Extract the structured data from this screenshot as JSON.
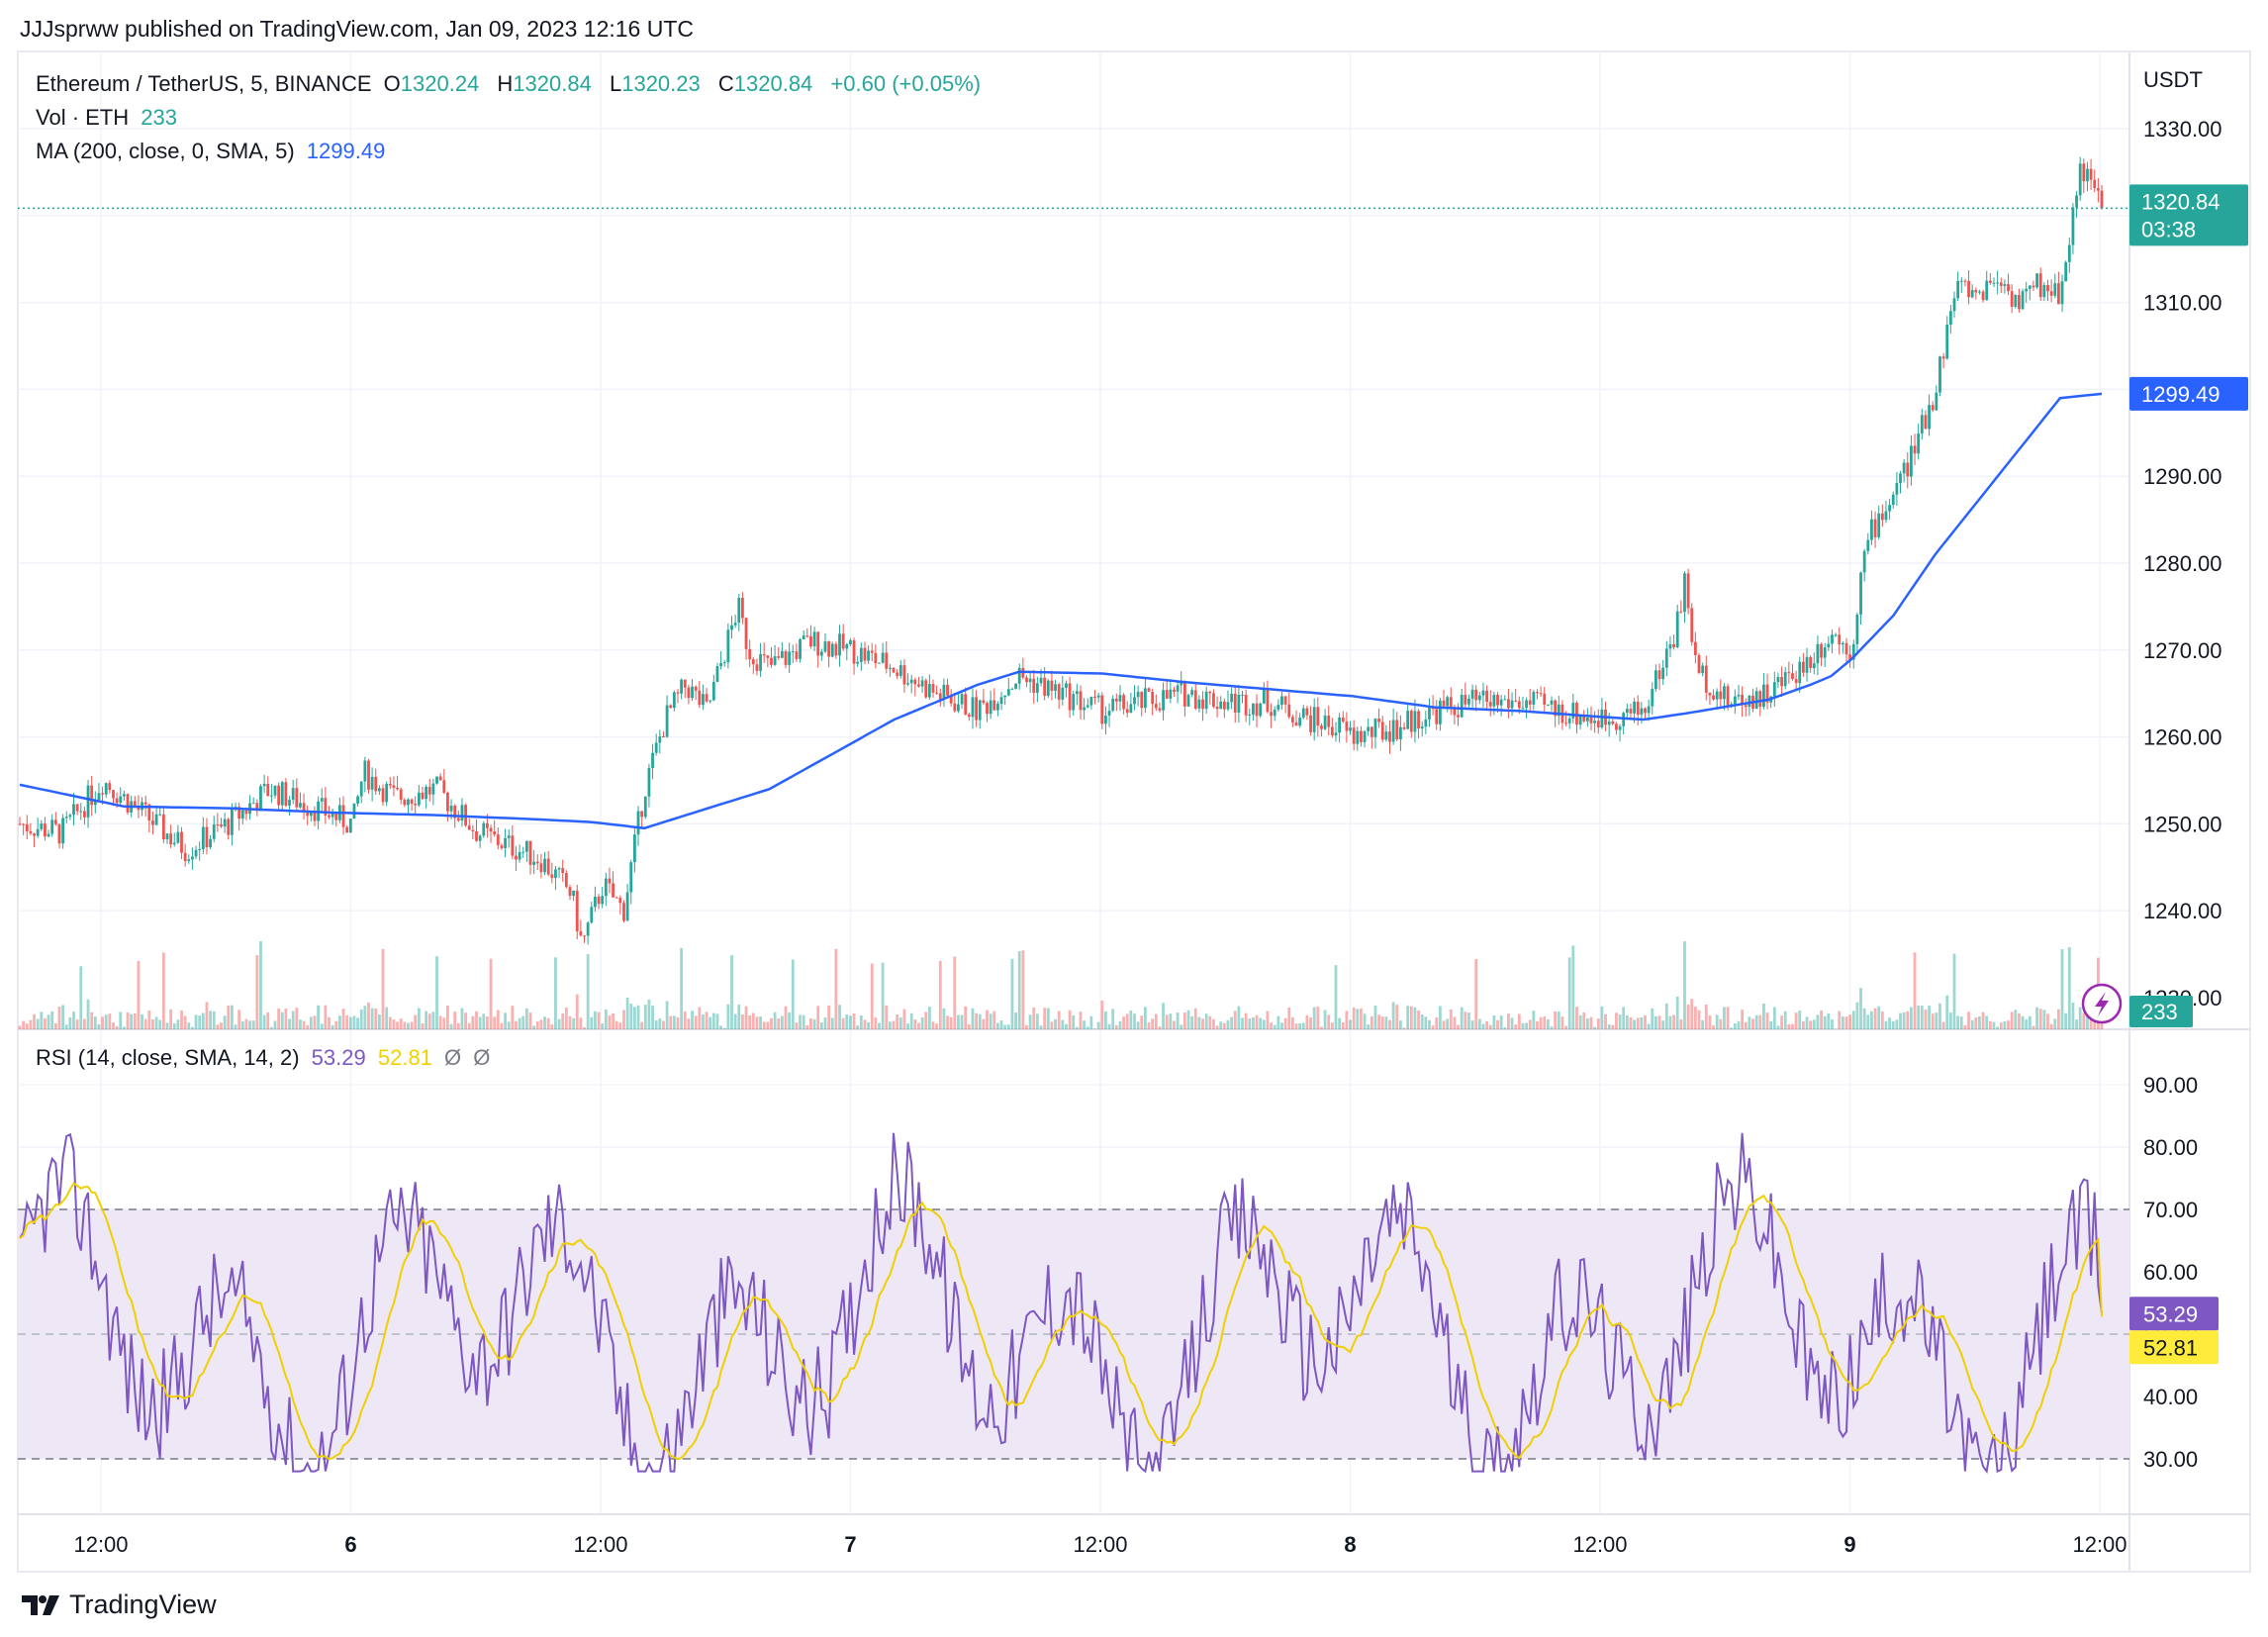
{
  "publisher": "JJJsprww published on TradingView.com, Jan 09, 2023 12:16 UTC",
  "legend": {
    "symbol": "Ethereum / TetherUS, 5, BINANCE",
    "o_label": "O",
    "o": "1320.24",
    "h_label": "H",
    "h": "1320.84",
    "l_label": "L",
    "l": "1320.23",
    "c_label": "C",
    "c": "1320.84",
    "change": "+0.60 (+0.05%)",
    "vol_label": "Vol · ETH",
    "vol": "233",
    "ma_label": "MA (200, close, 0, SMA, 5)",
    "ma": "1299.49",
    "rsi_label": "RSI (14, close, SMA, 14, 2)",
    "rsi": "53.29",
    "rsi_ma": "52.81",
    "extra1": "Ø",
    "extra2": "Ø"
  },
  "currency": "USDT",
  "price_tag": {
    "price": "1320.84",
    "countdown": "03:38"
  },
  "ma_tag": "1299.49",
  "vol_tag": "233",
  "rsi_tag": "53.29",
  "rsi_ma_tag": "52.81",
  "footer_brand": "TradingView",
  "colors": {
    "up": "#26a69a",
    "down": "#ef5350",
    "ma": "#2962ff",
    "rsi": "#7e57c2",
    "rsi_ma": "#f0d000",
    "band": "#ede7f6"
  },
  "chart_data": {
    "type": "candlestick",
    "price_axis": {
      "ticks": [
        "1330.00",
        "1320.00",
        "1310.00",
        "1300.00",
        "1290.00",
        "1280.00",
        "1270.00",
        "1260.00",
        "1250.00",
        "1240.00",
        "1230.00"
      ],
      "min": 1230,
      "max": 1330
    },
    "rsi_axis": {
      "ticks": [
        "90.00",
        "80.00",
        "70.00",
        "60.00",
        "50.00",
        "40.00",
        "30.00"
      ],
      "upper_band": 70,
      "lower_band": 30,
      "middle": 50
    },
    "x_ticks": [
      "12:00",
      "6",
      "12:00",
      "7",
      "12:00",
      "8",
      "12:00",
      "9",
      "12:00"
    ],
    "price_path": [
      [
        0,
        1250
      ],
      [
        0.02,
        1249
      ],
      [
        0.04,
        1255
      ],
      [
        0.06,
        1251
      ],
      [
        0.08,
        1247
      ],
      [
        0.1,
        1250
      ],
      [
        0.12,
        1254
      ],
      [
        0.14,
        1252
      ],
      [
        0.16,
        1250
      ],
      [
        0.165,
        1256
      ],
      [
        0.18,
        1253
      ],
      [
        0.2,
        1254
      ],
      [
        0.22,
        1249
      ],
      [
        0.24,
        1247
      ],
      [
        0.25,
        1246
      ],
      [
        0.265,
        1242
      ],
      [
        0.27,
        1236
      ],
      [
        0.28,
        1243
      ],
      [
        0.29,
        1240
      ],
      [
        0.3,
        1254
      ],
      [
        0.31,
        1262
      ],
      [
        0.32,
        1266
      ],
      [
        0.33,
        1263
      ],
      [
        0.345,
        1275
      ],
      [
        0.35,
        1270
      ],
      [
        0.36,
        1268
      ],
      [
        0.38,
        1271
      ],
      [
        0.4,
        1270
      ],
      [
        0.42,
        1268
      ],
      [
        0.44,
        1265
      ],
      [
        0.46,
        1263
      ],
      [
        0.48,
        1267
      ],
      [
        0.5,
        1265
      ],
      [
        0.52,
        1263
      ],
      [
        0.54,
        1264
      ],
      [
        0.56,
        1265
      ],
      [
        0.58,
        1264
      ],
      [
        0.6,
        1264
      ],
      [
        0.62,
        1262
      ],
      [
        0.635,
        1261
      ],
      [
        0.64,
        1260
      ],
      [
        0.66,
        1261
      ],
      [
        0.68,
        1263
      ],
      [
        0.7,
        1264
      ],
      [
        0.72,
        1264
      ],
      [
        0.74,
        1263
      ],
      [
        0.76,
        1262
      ],
      [
        0.78,
        1263
      ],
      [
        0.795,
        1272
      ],
      [
        0.8,
        1278
      ],
      [
        0.805,
        1268
      ],
      [
        0.82,
        1264
      ],
      [
        0.84,
        1265
      ],
      [
        0.86,
        1269
      ],
      [
        0.87,
        1272
      ],
      [
        0.88,
        1270
      ],
      [
        0.885,
        1280
      ],
      [
        0.89,
        1284
      ],
      [
        0.9,
        1288
      ],
      [
        0.91,
        1293
      ],
      [
        0.92,
        1300
      ],
      [
        0.93,
        1312
      ],
      [
        0.94,
        1311
      ],
      [
        0.95,
        1313
      ],
      [
        0.96,
        1310
      ],
      [
        0.97,
        1312
      ],
      [
        0.98,
        1311
      ],
      [
        0.99,
        1326
      ],
      [
        1.0,
        1320.84
      ]
    ],
    "ma_path": [
      [
        0,
        1254.5
      ],
      [
        0.05,
        1252
      ],
      [
        0.1,
        1251.8
      ],
      [
        0.15,
        1251.3
      ],
      [
        0.2,
        1251.0
      ],
      [
        0.25,
        1250.5
      ],
      [
        0.275,
        1250.2
      ],
      [
        0.3,
        1249.5
      ],
      [
        0.32,
        1251
      ],
      [
        0.36,
        1254
      ],
      [
        0.42,
        1262
      ],
      [
        0.46,
        1266
      ],
      [
        0.48,
        1267.5
      ],
      [
        0.52,
        1267.3
      ],
      [
        0.56,
        1266.3
      ],
      [
        0.6,
        1265.5
      ],
      [
        0.64,
        1264.7
      ],
      [
        0.68,
        1263.4
      ],
      [
        0.72,
        1263.0
      ],
      [
        0.76,
        1262.3
      ],
      [
        0.78,
        1262.0
      ],
      [
        0.8,
        1262.7
      ],
      [
        0.84,
        1264.3
      ],
      [
        0.86,
        1266.0
      ],
      [
        0.87,
        1267
      ],
      [
        0.88,
        1269
      ],
      [
        0.9,
        1274
      ],
      [
        0.92,
        1281
      ],
      [
        0.94,
        1287
      ],
      [
        0.96,
        1293
      ],
      [
        0.98,
        1299
      ],
      [
        1.0,
        1299.49
      ]
    ],
    "rsi_last": 53.29,
    "rsi_ma_last": 52.81
  }
}
